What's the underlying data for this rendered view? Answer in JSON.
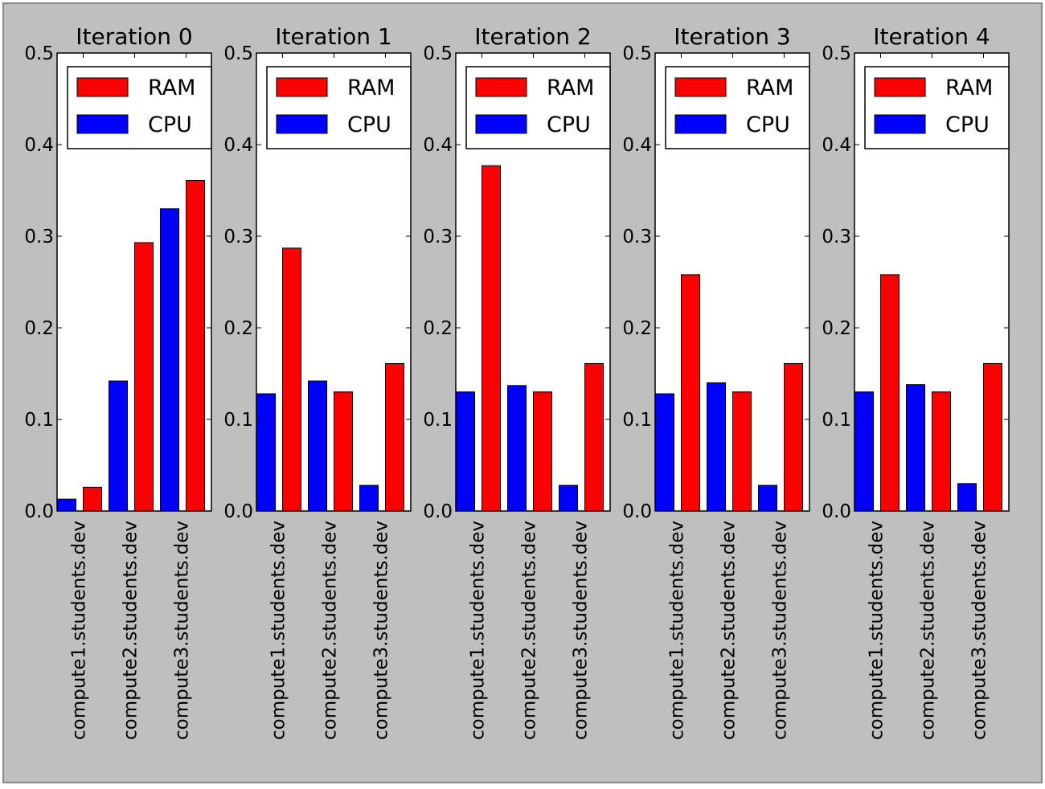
{
  "figure": {
    "background": "#bfbfbf",
    "border": "#888888"
  },
  "colors": {
    "RAM": "#ff0000",
    "CPU": "#0000ff"
  },
  "chart_data": [
    {
      "type": "bar",
      "title": "Iteration 0",
      "categories": [
        "compute1.students.dev",
        "compute2.students.dev",
        "compute3.students.dev"
      ],
      "series": [
        {
          "name": "CPU",
          "values": [
            0.013,
            0.142,
            0.33
          ]
        },
        {
          "name": "RAM",
          "values": [
            0.026,
            0.293,
            0.361
          ]
        }
      ],
      "ylim": [
        0,
        0.5
      ],
      "yticks": [
        "0.0",
        "0.1",
        "0.2",
        "0.3",
        "0.4",
        "0.5"
      ],
      "legend": [
        "RAM",
        "CPU"
      ],
      "legend_position": "top"
    },
    {
      "type": "bar",
      "title": "Iteration 1",
      "categories": [
        "compute1.students.dev",
        "compute2.students.dev",
        "compute3.students.dev"
      ],
      "series": [
        {
          "name": "CPU",
          "values": [
            0.128,
            0.142,
            0.028
          ]
        },
        {
          "name": "RAM",
          "values": [
            0.287,
            0.13,
            0.161
          ]
        }
      ],
      "ylim": [
        0,
        0.5
      ],
      "yticks": [
        "0.0",
        "0.1",
        "0.2",
        "0.3",
        "0.4",
        "0.5"
      ],
      "legend": [
        "RAM",
        "CPU"
      ],
      "legend_position": "top"
    },
    {
      "type": "bar",
      "title": "Iteration 2",
      "categories": [
        "compute1.students.dev",
        "compute2.students.dev",
        "compute3.students.dev"
      ],
      "series": [
        {
          "name": "CPU",
          "values": [
            0.13,
            0.137,
            0.028
          ]
        },
        {
          "name": "RAM",
          "values": [
            0.377,
            0.13,
            0.161
          ]
        }
      ],
      "ylim": [
        0,
        0.5
      ],
      "yticks": [
        "0.0",
        "0.1",
        "0.2",
        "0.3",
        "0.4",
        "0.5"
      ],
      "legend": [
        "RAM",
        "CPU"
      ],
      "legend_position": "top"
    },
    {
      "type": "bar",
      "title": "Iteration 3",
      "categories": [
        "compute1.students.dev",
        "compute2.students.dev",
        "compute3.students.dev"
      ],
      "series": [
        {
          "name": "CPU",
          "values": [
            0.128,
            0.14,
            0.028
          ]
        },
        {
          "name": "RAM",
          "values": [
            0.258,
            0.13,
            0.161
          ]
        }
      ],
      "ylim": [
        0,
        0.5
      ],
      "yticks": [
        "0.0",
        "0.1",
        "0.2",
        "0.3",
        "0.4",
        "0.5"
      ],
      "legend": [
        "RAM",
        "CPU"
      ],
      "legend_position": "top"
    },
    {
      "type": "bar",
      "title": "Iteration 4",
      "categories": [
        "compute1.students.dev",
        "compute2.students.dev",
        "compute3.students.dev"
      ],
      "series": [
        {
          "name": "CPU",
          "values": [
            0.13,
            0.138,
            0.03
          ]
        },
        {
          "name": "RAM",
          "values": [
            0.258,
            0.13,
            0.161
          ]
        }
      ],
      "ylim": [
        0,
        0.5
      ],
      "yticks": [
        "0.0",
        "0.1",
        "0.2",
        "0.3",
        "0.4",
        "0.5"
      ],
      "legend": [
        "RAM",
        "CPU"
      ],
      "legend_position": "top"
    }
  ]
}
